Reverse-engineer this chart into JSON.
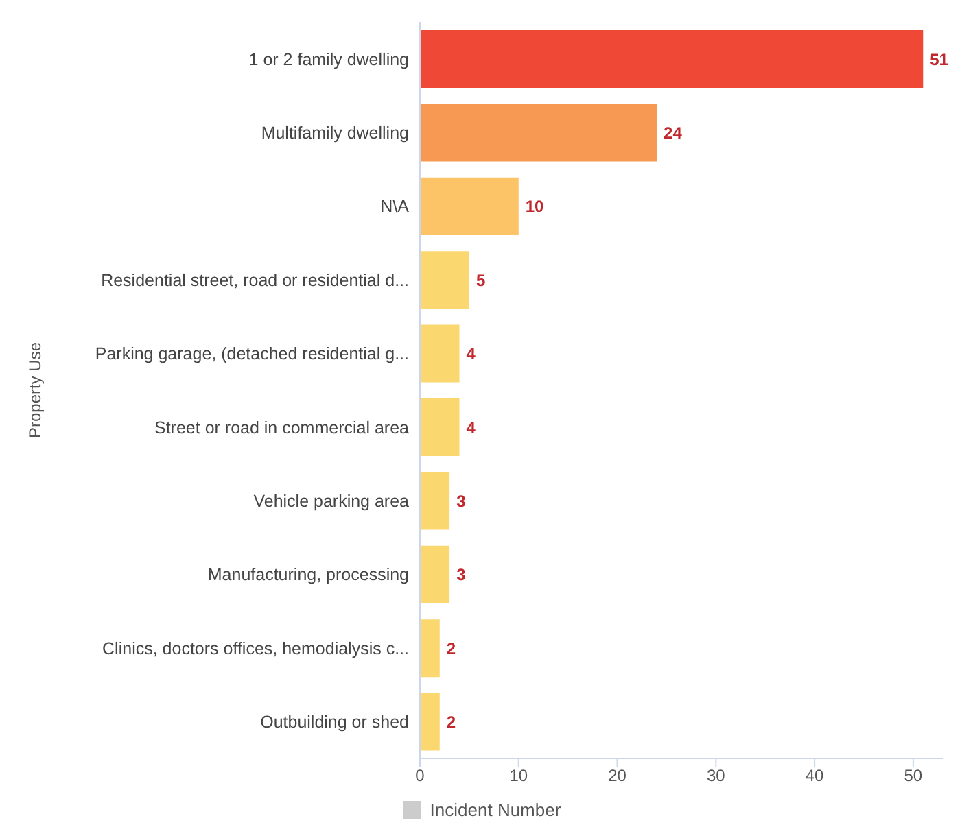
{
  "chart_data": {
    "type": "bar",
    "orientation": "horizontal",
    "ylabel": "Property Use",
    "categories": [
      "1 or 2 family dwelling",
      "Multifamily dwelling",
      "N\\A",
      "Residential street, road or residential d...",
      "Parking garage, (detached residential g...",
      "Street or road in commercial area",
      "Vehicle parking area",
      "Manufacturing, processing",
      "Clinics, doctors offices, hemodialysis c...",
      "Outbuilding or shed"
    ],
    "series": [
      {
        "name": "Incident Number",
        "values": [
          51,
          24,
          10,
          5,
          4,
          4,
          3,
          3,
          2,
          2
        ]
      }
    ],
    "colors": [
      "#ef4836",
      "#f79952",
      "#fcc467",
      "#fbd76f",
      "#fbd76f",
      "#fbd76f",
      "#fbd76f",
      "#fbd76f",
      "#fbd76f",
      "#fbd76f"
    ],
    "xlim": [
      0,
      53
    ],
    "xticks": [
      0,
      10,
      20,
      30,
      40,
      50
    ],
    "data_labels": true,
    "grid": false,
    "legend": "bottom"
  }
}
